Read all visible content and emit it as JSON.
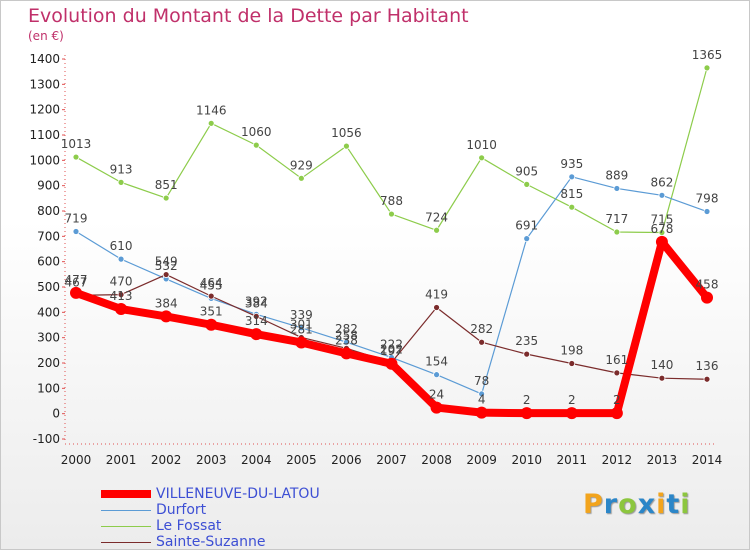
{
  "header": {
    "title": "Evolution du Montant de la Dette par Habitant",
    "unit": "(en €)"
  },
  "chart_data": {
    "type": "line",
    "title": "Evolution du Montant de la Dette par Habitant",
    "subtitle": "(en €)",
    "xlabel": "",
    "ylabel": "",
    "x": [
      2000,
      2001,
      2002,
      2003,
      2004,
      2005,
      2006,
      2007,
      2008,
      2009,
      2010,
      2011,
      2012,
      2013,
      2014
    ],
    "yticks": [
      -100,
      0,
      100,
      200,
      300,
      400,
      500,
      600,
      700,
      800,
      900,
      1000,
      1100,
      1200,
      1300,
      1400
    ],
    "ylim": [
      -100,
      1400
    ],
    "grid": false,
    "legend_position": "bottom-left",
    "series": [
      {
        "name": "VILLENEUVE-DU-LATOU",
        "color": "#ff0000",
        "values": [
          477,
          413,
          384,
          351,
          314,
          281,
          238,
          197,
          24,
          4,
          2,
          2,
          2,
          678,
          458
        ],
        "labels_shown": [
          true,
          true,
          true,
          true,
          true,
          true,
          true,
          true,
          true,
          true,
          true,
          true,
          true,
          true,
          true
        ],
        "label_text": [
          "477",
          "413",
          "384",
          "351",
          "314",
          "281",
          "238",
          "197",
          "24",
          "4",
          "2",
          "2",
          "2",
          "678",
          "458"
        ]
      },
      {
        "name": "Durfort",
        "color": "#5b9bd5",
        "values": [
          719,
          610,
          532,
          455,
          392,
          339,
          282,
          222,
          154,
          78,
          691,
          935,
          889,
          862,
          798
        ],
        "labels_shown": [
          true,
          true,
          true,
          true,
          true,
          true,
          true,
          true,
          true,
          true,
          true,
          true,
          true,
          true,
          true
        ],
        "label_text": [
          "719",
          "610",
          "532",
          "455",
          "392",
          "339",
          "282",
          "222",
          "154",
          "78",
          "691",
          "935",
          "889",
          "862",
          "798"
        ]
      },
      {
        "name": "Le Fossat",
        "color": "#8dcc4b",
        "values": [
          1013,
          913,
          851,
          1146,
          1060,
          929,
          1056,
          788,
          724,
          1010,
          905,
          815,
          717,
          715,
          1365
        ],
        "labels_shown": [
          true,
          true,
          true,
          true,
          true,
          true,
          true,
          true,
          true,
          true,
          true,
          true,
          true,
          true,
          true
        ],
        "label_text": [
          "1013",
          "913",
          "851",
          "1146",
          "1060",
          "929",
          "1056",
          "788",
          "724",
          "1010",
          "905",
          "815",
          "717",
          "715",
          "1365"
        ]
      },
      {
        "name": "Sainte-Suzanne",
        "color": "#7b2c2c",
        "values": [
          467,
          470,
          549,
          464,
          384,
          301,
          258,
          202,
          419,
          282,
          235,
          198,
          161,
          140,
          136
        ],
        "labels_shown": [
          true,
          true,
          true,
          true,
          true,
          true,
          true,
          true,
          true,
          true,
          true,
          true,
          true,
          true,
          true
        ],
        "label_text": [
          "467",
          "470",
          "549",
          "464",
          "384",
          "301",
          "258",
          "202",
          "419",
          "282",
          "235",
          "198",
          "161",
          "140",
          "136"
        ]
      }
    ]
  },
  "legend": {
    "items": [
      {
        "label": "VILLENEUVE-DU-LATOU",
        "color": "#ff0000"
      },
      {
        "label": "Durfort",
        "color": "#5b9bd5"
      },
      {
        "label": "Le Fossat",
        "color": "#8dcc4b"
      },
      {
        "label": "Sainte-Suzanne",
        "color": "#7b2c2c"
      }
    ]
  },
  "logo": {
    "letters": [
      "P",
      "r",
      "o",
      "x",
      "i",
      "t",
      "i"
    ],
    "colors": [
      "#f2a41d",
      "#2b86c8",
      "#8cc63e",
      "#2b86c8",
      "#f2a41d",
      "#2b86c8",
      "#8cc63e"
    ]
  }
}
